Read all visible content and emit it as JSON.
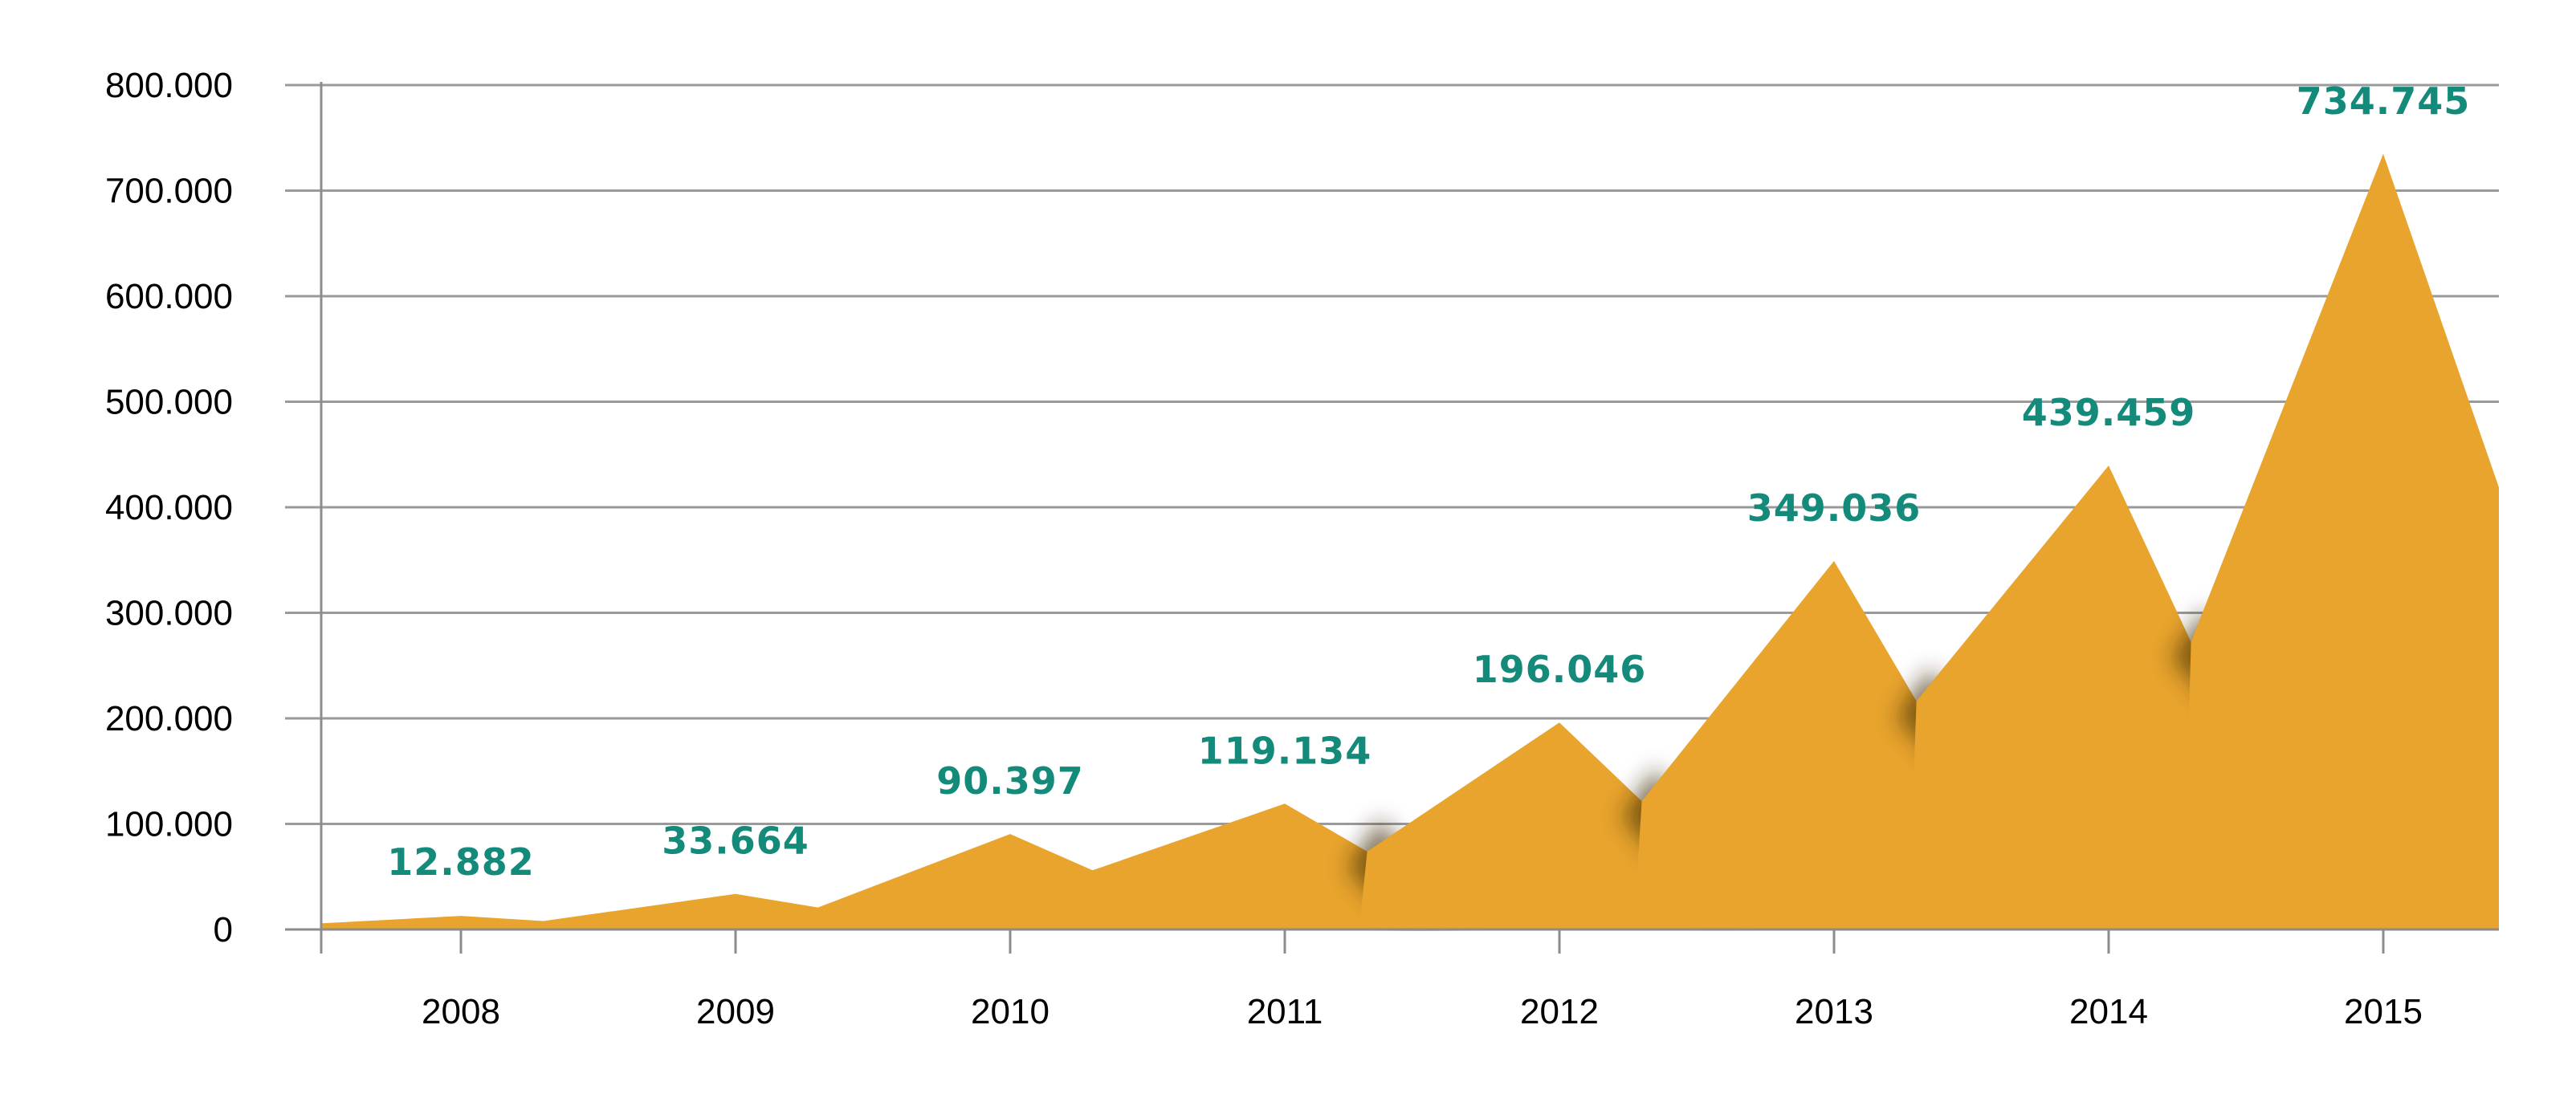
{
  "chart_data": {
    "type": "area",
    "title": "",
    "xlabel": "",
    "ylabel": "",
    "categories": [
      "2008",
      "2009",
      "2010",
      "2011",
      "2012",
      "2013",
      "2014",
      "2015"
    ],
    "values": [
      12882,
      33664,
      90397,
      119134,
      196046,
      349036,
      439459,
      734745
    ],
    "data_labels": [
      "12.882",
      "33.664",
      "90.397",
      "119.134",
      "196.046",
      "349.036",
      "439.459",
      "734.745"
    ],
    "y_ticks": [
      0,
      100000,
      200000,
      300000,
      400000,
      500000,
      600000,
      700000,
      800000
    ],
    "y_tick_labels": [
      "0",
      "100.000",
      "200.000",
      "300.000",
      "400.000",
      "500.000",
      "600.000",
      "700.000",
      "800.000"
    ],
    "ylim": [
      0,
      800000
    ],
    "grid": true,
    "legend": "none",
    "colors": {
      "area": "#E8A42C",
      "shadow": "#3a2a10",
      "label": "#138A7A"
    }
  }
}
